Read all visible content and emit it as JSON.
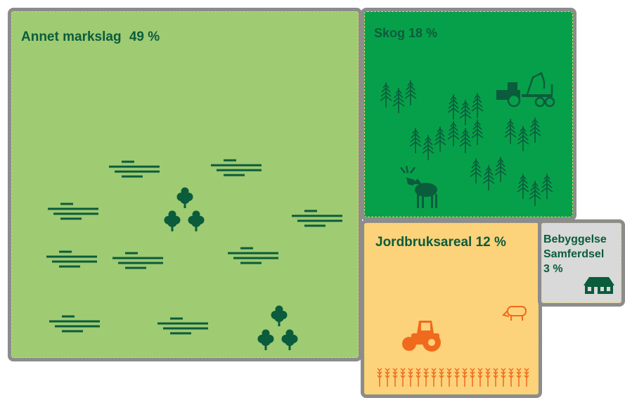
{
  "panels": {
    "annet": {
      "label": "Annet markslag",
      "value": "49 %",
      "color": "#9fcb72"
    },
    "skog": {
      "label": "Skog 18 %",
      "color": "#07a04a"
    },
    "jordbruk": {
      "label": "Jordbruksareal 12 %",
      "color": "#fcd27a"
    },
    "bebyggelse": {
      "line1": "Bebyggelse",
      "line2": "Samferdsel",
      "line3": "3 %",
      "color": "#d9d9d9"
    }
  },
  "icon_colors": {
    "dark_green": "#0b5c3c",
    "orange": "#f06a1e"
  },
  "icons": [
    "marsh-icon",
    "tree-icon",
    "forest-icon",
    "tractor-icon",
    "moose-icon",
    "cow-icon",
    "crop-icon",
    "house-icon"
  ]
}
